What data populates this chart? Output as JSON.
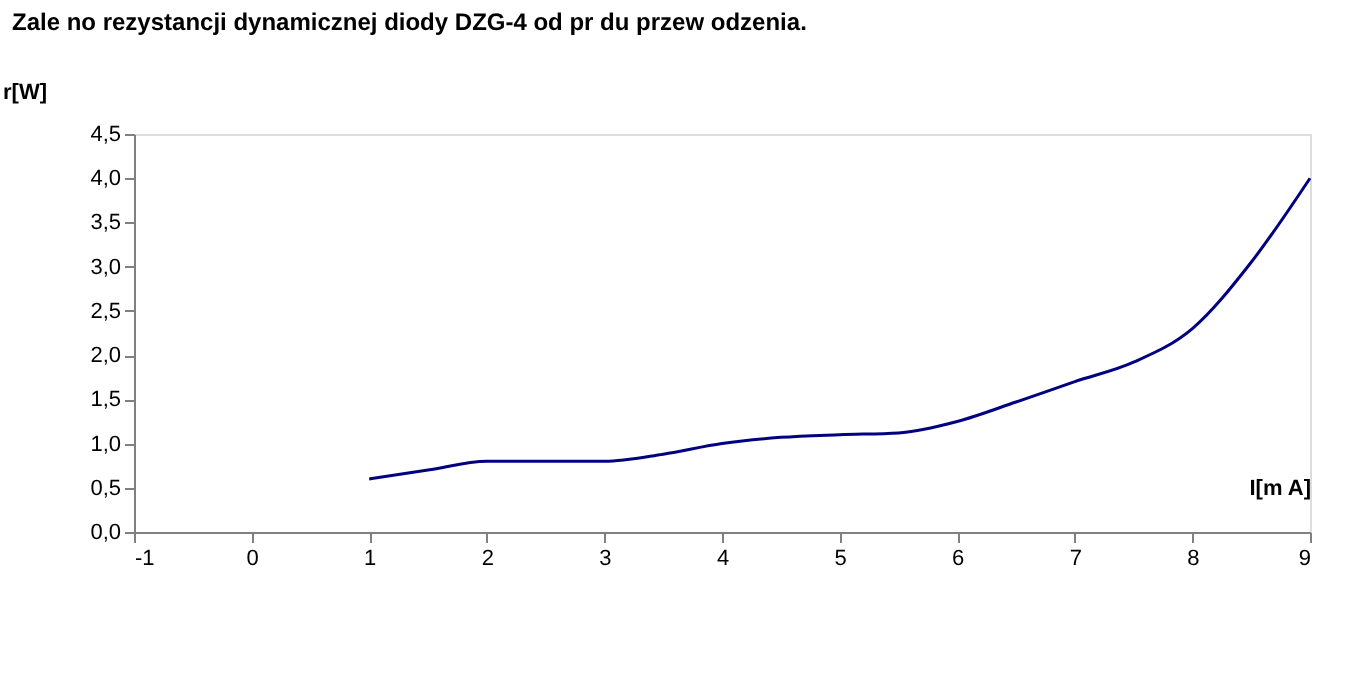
{
  "chart_data": {
    "type": "line",
    "title": "Zale no rezystancji dynamicznej diody DZG-4 od pr du przew odzenia.",
    "ylabel": "r[W]",
    "xlabel": "I[m A]",
    "x": [
      1,
      1.5,
      2,
      3,
      3.5,
      4,
      4.5,
      5,
      5.5,
      6,
      6.5,
      7,
      7.5,
      8,
      8.5,
      9
    ],
    "series": [
      {
        "color": "#000080",
        "values": [
          0.6,
          0.7,
          0.8,
          0.8,
          0.88,
          1.0,
          1.07,
          1.1,
          1.12,
          1.25,
          1.47,
          1.7,
          1.92,
          2.3,
          3.05,
          4.0
        ]
      }
    ],
    "xlim": [
      -1,
      9
    ],
    "xticks": [
      -1,
      0,
      1,
      2,
      3,
      4,
      5,
      6,
      7,
      8,
      9
    ],
    "ylim": [
      0,
      4.5
    ],
    "yticks": [
      {
        "value": 0,
        "label": "0,0"
      },
      {
        "value": 0.5,
        "label": "0,5"
      },
      {
        "value": 1,
        "label": "1,0"
      },
      {
        "value": 1.5,
        "label": "1,5"
      },
      {
        "value": 2,
        "label": "2,0"
      },
      {
        "value": 2.5,
        "label": "2,5"
      },
      {
        "value": 3,
        "label": "3,0"
      },
      {
        "value": 3.5,
        "label": "3,5"
      },
      {
        "value": 4,
        "label": "4,0"
      },
      {
        "value": 4.5,
        "label": "4,5"
      }
    ],
    "grid": false,
    "legend": false,
    "marker": "none",
    "line_style": "solid"
  }
}
